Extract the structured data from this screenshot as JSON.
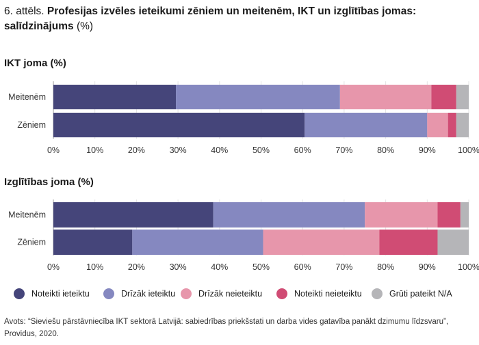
{
  "figure": {
    "number": "6. attēls.",
    "title": "Profesijas izvēles ieteikumi zēniem un meitenēm, IKT un izglītības jomas: salīdzinājums",
    "unit": "(%)"
  },
  "chart_data": [
    {
      "type": "bar",
      "orientation": "horizontal-stacked-100",
      "title": "IKT joma (%)",
      "categories": [
        "Meitenēm",
        "Zēniem"
      ],
      "series": [
        {
          "name": "Noteikti ieteiktu",
          "values": [
            29.5,
            60.5
          ]
        },
        {
          "name": "Drīzāk ieteiktu",
          "values": [
            39.5,
            29.5
          ]
        },
        {
          "name": "Drīzāk neieteiktu",
          "values": [
            22,
            5
          ]
        },
        {
          "name": "Noteikti neieteiktu",
          "values": [
            6,
            2
          ]
        },
        {
          "name": "Grūti pateikt N/A",
          "values": [
            3,
            3
          ]
        }
      ],
      "xlim": [
        0,
        100
      ],
      "xticks": [
        "0%",
        "10%",
        "20%",
        "30%",
        "40%",
        "50%",
        "60%",
        "70%",
        "80%",
        "90%",
        "100%"
      ]
    },
    {
      "type": "bar",
      "orientation": "horizontal-stacked-100",
      "title": "Izglītības joma (%)",
      "categories": [
        "Meitenēm",
        "Zēniem"
      ],
      "series": [
        {
          "name": "Noteikti ieteiktu",
          "values": [
            38.5,
            19
          ]
        },
        {
          "name": "Drīzāk ieteiktu",
          "values": [
            36.5,
            31.5
          ]
        },
        {
          "name": "Drīzāk neieteiktu",
          "values": [
            17.5,
            28
          ]
        },
        {
          "name": "Noteikti neieteiktu",
          "values": [
            5.5,
            14
          ]
        },
        {
          "name": "Grūti pateikt N/A",
          "values": [
            2,
            7.5
          ]
        }
      ],
      "xlim": [
        0,
        100
      ],
      "xticks": [
        "0%",
        "10%",
        "20%",
        "30%",
        "40%",
        "50%",
        "60%",
        "70%",
        "80%",
        "90%",
        "100%"
      ]
    }
  ],
  "legend": [
    {
      "label": "Noteikti ieteiktu",
      "color": "#45457a"
    },
    {
      "label": "Drīzāk ieteiktu",
      "color": "#8588c0"
    },
    {
      "label": "Drīzāk neieteiktu",
      "color": "#e796ab"
    },
    {
      "label": "Noteikti neieteiktu",
      "color": "#d04c74"
    },
    {
      "label": "Grūti pateikt N/A",
      "color": "#b5b5b8"
    }
  ],
  "source": "Avots: “Sieviešu pārstāvniecība IKT sektorā Latvijā: sabiedrības priekšstati un darba vides gatavība panākt dzimumu līdzsvaru”, Providus, 2020."
}
